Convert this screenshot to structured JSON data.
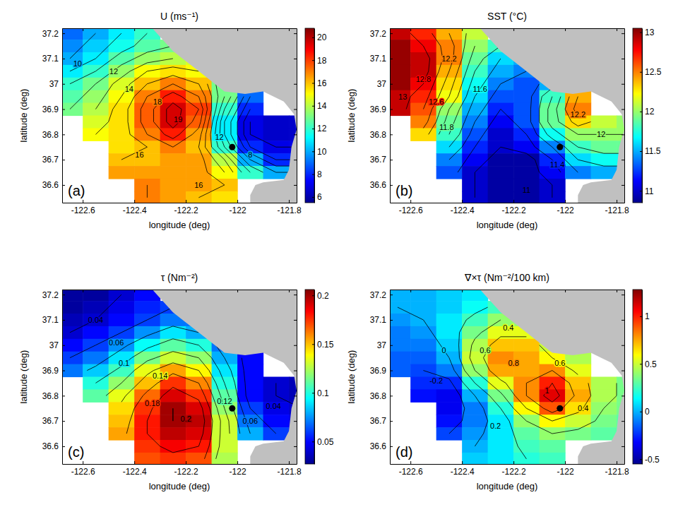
{
  "chart_data": [
    {
      "type": "heatmap",
      "title": "U (ms⁻¹)",
      "x_label": "longitude (deg)",
      "y_label": "latitude (deg)",
      "panel_label": "(a)",
      "xlim": [
        -122.68,
        -121.77
      ],
      "ylim": [
        36.53,
        37.22
      ],
      "xticks": [
        -122.6,
        -122.4,
        -122.2,
        -122,
        -121.8
      ],
      "yticks": [
        36.6,
        36.7,
        36.8,
        36.9,
        37,
        37.1,
        37.2
      ],
      "x": [
        -122.65,
        -122.55,
        -122.45,
        -122.35,
        -122.25,
        -122.15,
        -122.05,
        -121.95,
        -121.85,
        -121.75
      ],
      "y": [
        37.2,
        37.15,
        37.1,
        37.05,
        37,
        36.95,
        36.9,
        36.85,
        36.8,
        36.75,
        36.7,
        36.65,
        36.6,
        36.55
      ],
      "cells": [
        [
          9,
          10,
          11,
          12,
          null,
          null,
          null,
          null,
          null,
          null
        ],
        [
          9.5,
          10.5,
          11.5,
          12.5,
          13,
          null,
          null,
          null,
          null,
          null
        ],
        [
          10,
          11,
          12.5,
          13.5,
          14,
          14.5,
          null,
          null,
          null,
          null
        ],
        [
          11,
          12,
          13.5,
          15,
          15.5,
          15,
          null,
          null,
          null,
          null
        ],
        [
          12,
          13,
          14.5,
          16,
          17,
          16,
          13,
          null,
          null,
          null
        ],
        [
          12.5,
          13.5,
          15,
          17,
          18.5,
          17,
          13,
          9,
          null,
          null
        ],
        [
          13,
          14,
          15.5,
          17.5,
          19.5,
          18,
          12,
          8,
          null,
          null
        ],
        [
          null,
          14.5,
          15.5,
          17.5,
          19.5,
          17.5,
          11,
          7,
          6.5,
          6.5
        ],
        [
          null,
          15,
          15.5,
          17,
          18.5,
          16.5,
          11,
          7,
          6.5,
          6.5
        ],
        [
          null,
          null,
          15.5,
          16,
          17,
          16,
          12,
          8,
          7,
          7
        ],
        [
          null,
          null,
          16,
          16,
          16.5,
          16.5,
          14,
          10,
          8,
          8
        ],
        [
          null,
          null,
          16.5,
          16.5,
          16.5,
          16.5,
          15,
          12,
          10,
          10
        ],
        [
          null,
          null,
          null,
          17,
          16.5,
          16.5,
          16,
          null,
          null,
          null
        ],
        [
          null,
          null,
          null,
          17,
          16.5,
          16,
          15.5,
          null,
          null,
          null
        ]
      ],
      "colorbar": {
        "range": [
          5.5,
          20.8
        ],
        "ticks": [
          6,
          8,
          10,
          12,
          14,
          16,
          18,
          20
        ]
      },
      "contour_levels": [
        7,
        8,
        9,
        10,
        11,
        12,
        13,
        14,
        15,
        16,
        17,
        18,
        19
      ],
      "annotations": [
        {
          "x": -122.62,
          "y": 37.08,
          "text": "10"
        },
        {
          "x": -122.48,
          "y": 37.05,
          "text": "12"
        },
        {
          "x": -122.42,
          "y": 36.98,
          "text": "14"
        },
        {
          "x": -122.31,
          "y": 36.93,
          "text": "18"
        },
        {
          "x": -122.23,
          "y": 36.86,
          "text": "19"
        },
        {
          "x": -122.38,
          "y": 36.72,
          "text": "16"
        },
        {
          "x": -122.15,
          "y": 36.6,
          "text": "16"
        },
        {
          "x": -122.07,
          "y": 36.79,
          "text": "12"
        },
        {
          "x": -121.95,
          "y": 36.72,
          "text": "8"
        }
      ],
      "points": [
        {
          "x": -122.02,
          "y": 36.75
        }
      ]
    },
    {
      "type": "heatmap",
      "title": "SST (°C)",
      "x_label": "longitude (deg)",
      "y_label": "latitude (deg)",
      "panel_label": "(b)",
      "xlim": [
        -122.68,
        -121.77
      ],
      "ylim": [
        36.53,
        37.22
      ],
      "xticks": [
        -122.6,
        -122.4,
        -122.2,
        -122,
        -121.8
      ],
      "yticks": [
        36.6,
        36.7,
        36.8,
        36.9,
        37,
        37.1,
        37.2
      ],
      "x": [
        -122.65,
        -122.55,
        -122.45,
        -122.35,
        -122.25,
        -122.15,
        -122.05,
        -121.95,
        -121.85,
        -121.75
      ],
      "y": [
        37.2,
        37.15,
        37.1,
        37.05,
        37,
        36.95,
        36.9,
        36.85,
        36.8,
        36.75,
        36.7,
        36.65,
        36.6,
        36.55
      ],
      "cells": [
        [
          12.9,
          12.7,
          12.4,
          12.1,
          null,
          null,
          null,
          null,
          null,
          null
        ],
        [
          13,
          12.8,
          12.5,
          12,
          11.8,
          null,
          null,
          null,
          null,
          null
        ],
        [
          13,
          12.9,
          12.5,
          11.9,
          11.6,
          11.5,
          null,
          null,
          null,
          null
        ],
        [
          13,
          12.9,
          12.4,
          11.8,
          11.5,
          11.4,
          null,
          null,
          null,
          null
        ],
        [
          13,
          12.8,
          12.3,
          11.7,
          11.4,
          11.3,
          11.5,
          null,
          null,
          null
        ],
        [
          12.9,
          12.7,
          12.2,
          11.6,
          11.3,
          11.3,
          11.8,
          12.4,
          null,
          null
        ],
        [
          12.9,
          12.6,
          12,
          11.5,
          11.2,
          11.3,
          11.9,
          12.5,
          null,
          null
        ],
        [
          null,
          12.5,
          11.9,
          11.4,
          11.1,
          11.3,
          11.9,
          12.3,
          12.1,
          12
        ],
        [
          null,
          12.3,
          11.8,
          11.3,
          11,
          11.2,
          11.7,
          12,
          12,
          12
        ],
        [
          null,
          null,
          11.6,
          11.2,
          11,
          11.1,
          11.4,
          11.8,
          11.9,
          11.9
        ],
        [
          null,
          null,
          11.4,
          11.1,
          10.9,
          10.9,
          11.2,
          11.6,
          11.7,
          11.7
        ],
        [
          null,
          null,
          11.3,
          11,
          10.9,
          10.9,
          11.1,
          11.4,
          11.5,
          11.5
        ],
        [
          null,
          null,
          null,
          11,
          10.9,
          10.9,
          11,
          null,
          null,
          null
        ],
        [
          null,
          null,
          null,
          11,
          10.9,
          10.9,
          11,
          null,
          null,
          null
        ]
      ],
      "colorbar": {
        "range": [
          10.85,
          13.05
        ],
        "ticks": [
          11,
          11.5,
          12,
          12.5,
          13
        ]
      },
      "contour_levels": [
        11,
        11.2,
        11.4,
        11.6,
        11.8,
        12,
        12.2,
        12.4,
        12.6,
        12.8
      ],
      "annotations": [
        {
          "x": -122.63,
          "y": 36.95,
          "text": "13"
        },
        {
          "x": -122.55,
          "y": 37.02,
          "text": "12.8"
        },
        {
          "x": -122.5,
          "y": 36.93,
          "text": "12.6"
        },
        {
          "x": -122.45,
          "y": 37.1,
          "text": "12.2"
        },
        {
          "x": -122.46,
          "y": 36.83,
          "text": "11.8"
        },
        {
          "x": -122.33,
          "y": 36.98,
          "text": "11.6"
        },
        {
          "x": -122.03,
          "y": 36.68,
          "text": "11.4"
        },
        {
          "x": -121.95,
          "y": 36.88,
          "text": "12.2"
        },
        {
          "x": -121.86,
          "y": 36.8,
          "text": "12"
        },
        {
          "x": -122.15,
          "y": 36.58,
          "text": "11"
        }
      ],
      "points": [
        {
          "x": -122.02,
          "y": 36.75
        }
      ]
    },
    {
      "type": "heatmap",
      "title": "τ (Nm⁻²)",
      "x_label": "longitude (deg)",
      "y_label": "latitude (deg)",
      "panel_label": "(c)",
      "xlim": [
        -122.68,
        -121.77
      ],
      "ylim": [
        36.53,
        37.22
      ],
      "xticks": [
        -122.6,
        -122.4,
        -122.2,
        -122,
        -121.8
      ],
      "yticks": [
        36.6,
        36.7,
        36.8,
        36.9,
        37,
        37.1,
        37.2
      ],
      "x": [
        -122.65,
        -122.55,
        -122.45,
        -122.35,
        -122.25,
        -122.15,
        -122.05,
        -121.95,
        -121.85,
        -121.75
      ],
      "y": [
        37.2,
        37.15,
        37.1,
        37.05,
        37,
        36.95,
        36.9,
        36.85,
        36.8,
        36.75,
        36.7,
        36.65,
        36.6,
        36.55
      ],
      "cells": [
        [
          0.03,
          0.03,
          0.04,
          0.05,
          null,
          null,
          null,
          null,
          null,
          null
        ],
        [
          0.03,
          0.035,
          0.045,
          0.055,
          0.06,
          null,
          null,
          null,
          null,
          null
        ],
        [
          0.035,
          0.04,
          0.05,
          0.06,
          0.07,
          0.07,
          null,
          null,
          null,
          null
        ],
        [
          0.04,
          0.05,
          0.06,
          0.075,
          0.09,
          0.08,
          null,
          null,
          null,
          null
        ],
        [
          0.05,
          0.06,
          0.075,
          0.095,
          0.11,
          0.1,
          0.07,
          null,
          null,
          null
        ],
        [
          0.06,
          0.07,
          0.09,
          0.115,
          0.13,
          0.12,
          0.08,
          0.05,
          null,
          null
        ],
        [
          0.07,
          0.085,
          0.105,
          0.135,
          0.155,
          0.14,
          0.09,
          0.05,
          null,
          null
        ],
        [
          null,
          0.1,
          0.12,
          0.15,
          0.175,
          0.16,
          0.1,
          0.05,
          0.04,
          0.035
        ],
        [
          null,
          0.11,
          0.135,
          0.165,
          0.19,
          0.175,
          0.11,
          0.05,
          0.04,
          0.035
        ],
        [
          null,
          null,
          0.145,
          0.175,
          0.2,
          0.19,
          0.12,
          0.06,
          0.045,
          0.04
        ],
        [
          null,
          null,
          0.15,
          0.18,
          0.2,
          0.195,
          0.13,
          0.07,
          0.05,
          0.045
        ],
        [
          null,
          null,
          0.155,
          0.18,
          0.195,
          0.19,
          0.13,
          0.08,
          0.06,
          0.05
        ],
        [
          null,
          null,
          null,
          0.175,
          0.185,
          0.18,
          0.13,
          null,
          null,
          null
        ],
        [
          null,
          null,
          null,
          0.17,
          0.175,
          0.17,
          0.125,
          null,
          null,
          null
        ]
      ],
      "colorbar": {
        "range": [
          0.027,
          0.206
        ],
        "ticks": [
          0.05,
          0.1,
          0.15,
          0.2
        ]
      },
      "contour_levels": [
        0.04,
        0.06,
        0.08,
        0.1,
        0.12,
        0.14,
        0.16,
        0.18,
        0.2
      ],
      "annotations": [
        {
          "x": -122.55,
          "y": 37.1,
          "text": "0.04"
        },
        {
          "x": -122.47,
          "y": 37.01,
          "text": "0.06"
        },
        {
          "x": -122.44,
          "y": 36.93,
          "text": "0.1"
        },
        {
          "x": -122.3,
          "y": 36.88,
          "text": "0.14"
        },
        {
          "x": -122.33,
          "y": 36.77,
          "text": "0.18"
        },
        {
          "x": -122.2,
          "y": 36.71,
          "text": "0.2"
        },
        {
          "x": -122.05,
          "y": 36.78,
          "text": "0.12"
        },
        {
          "x": -121.95,
          "y": 36.7,
          "text": "0.06"
        },
        {
          "x": -121.86,
          "y": 36.76,
          "text": "0.04"
        }
      ],
      "points": [
        {
          "x": -122.02,
          "y": 36.75
        }
      ]
    },
    {
      "type": "heatmap",
      "title": "∇×τ (Nm⁻²/100 km)",
      "x_label": "longitude (deg)",
      "y_label": "latitude (deg)",
      "panel_label": "(d)",
      "xlim": [
        -122.68,
        -121.77
      ],
      "ylim": [
        36.53,
        37.22
      ],
      "xticks": [
        -122.6,
        -122.4,
        -122.2,
        -122,
        -121.8
      ],
      "yticks": [
        36.6,
        36.7,
        36.8,
        36.9,
        37,
        37.1,
        37.2
      ],
      "x": [
        -122.65,
        -122.55,
        -122.45,
        -122.35,
        -122.25,
        -122.15,
        -122.05,
        -121.95,
        -121.85,
        -121.75
      ],
      "y": [
        37.2,
        37.15,
        37.1,
        37.05,
        37,
        36.95,
        36.9,
        36.85,
        36.8,
        36.75,
        36.7,
        36.65,
        36.6,
        36.55
      ],
      "cells": [
        [
          0,
          0,
          0.05,
          0.1,
          null,
          null,
          null,
          null,
          null,
          null
        ],
        [
          0,
          0,
          0.05,
          0.15,
          0.25,
          null,
          null,
          null,
          null,
          null
        ],
        [
          -0.05,
          0,
          0.1,
          0.25,
          0.4,
          0.4,
          null,
          null,
          null,
          null
        ],
        [
          -0.1,
          -0.05,
          0.1,
          0.35,
          0.55,
          0.55,
          null,
          null,
          null,
          null
        ],
        [
          -0.1,
          -0.1,
          0.05,
          0.45,
          0.7,
          0.7,
          0.5,
          null,
          null,
          null
        ],
        [
          -0.15,
          -0.15,
          0,
          0.5,
          0.8,
          0.75,
          0.6,
          0.45,
          null,
          null
        ],
        [
          -0.15,
          -0.2,
          -0.1,
          0.4,
          0.75,
          0.75,
          0.8,
          0.55,
          null,
          null
        ],
        [
          null,
          -0.25,
          -0.25,
          0.2,
          0.55,
          0.8,
          1,
          0.7,
          0.45,
          0.35
        ],
        [
          null,
          -0.3,
          -0.35,
          0,
          0.35,
          0.8,
          1.1,
          0.75,
          0.45,
          0.35
        ],
        [
          null,
          null,
          -0.35,
          -0.1,
          0.2,
          0.6,
          0.9,
          0.65,
          0.4,
          0.35
        ],
        [
          null,
          null,
          -0.3,
          -0.1,
          0.1,
          0.4,
          0.6,
          0.5,
          0.35,
          0.3
        ],
        [
          null,
          null,
          -0.2,
          -0.05,
          0.1,
          0.3,
          0.4,
          0.35,
          0.3,
          0.3
        ],
        [
          null,
          null,
          null,
          0,
          0.1,
          0.25,
          0.3,
          null,
          null,
          null
        ],
        [
          null,
          null,
          null,
          0.05,
          0.1,
          0.2,
          0.25,
          null,
          null,
          null
        ]
      ],
      "colorbar": {
        "range": [
          -0.55,
          1.28
        ],
        "ticks": [
          -0.5,
          0,
          0.5,
          1
        ]
      },
      "contour_levels": [
        -0.2,
        0,
        0.2,
        0.4,
        0.6,
        0.8,
        1
      ],
      "annotations": [
        {
          "x": -122.47,
          "y": 36.98,
          "text": "0"
        },
        {
          "x": -122.5,
          "y": 36.86,
          "text": "-0.2"
        },
        {
          "x": -122.22,
          "y": 37.07,
          "text": "0.4"
        },
        {
          "x": -122.31,
          "y": 36.98,
          "text": "0.6"
        },
        {
          "x": -122.2,
          "y": 36.93,
          "text": "0.8"
        },
        {
          "x": -122.07,
          "y": 36.82,
          "text": "1"
        },
        {
          "x": -122.02,
          "y": 36.93,
          "text": "0.6"
        },
        {
          "x": -121.93,
          "y": 36.75,
          "text": "0.4"
        },
        {
          "x": -122.27,
          "y": 36.68,
          "text": "0.2"
        }
      ],
      "points": [
        {
          "x": -122.02,
          "y": 36.75
        }
      ]
    }
  ]
}
